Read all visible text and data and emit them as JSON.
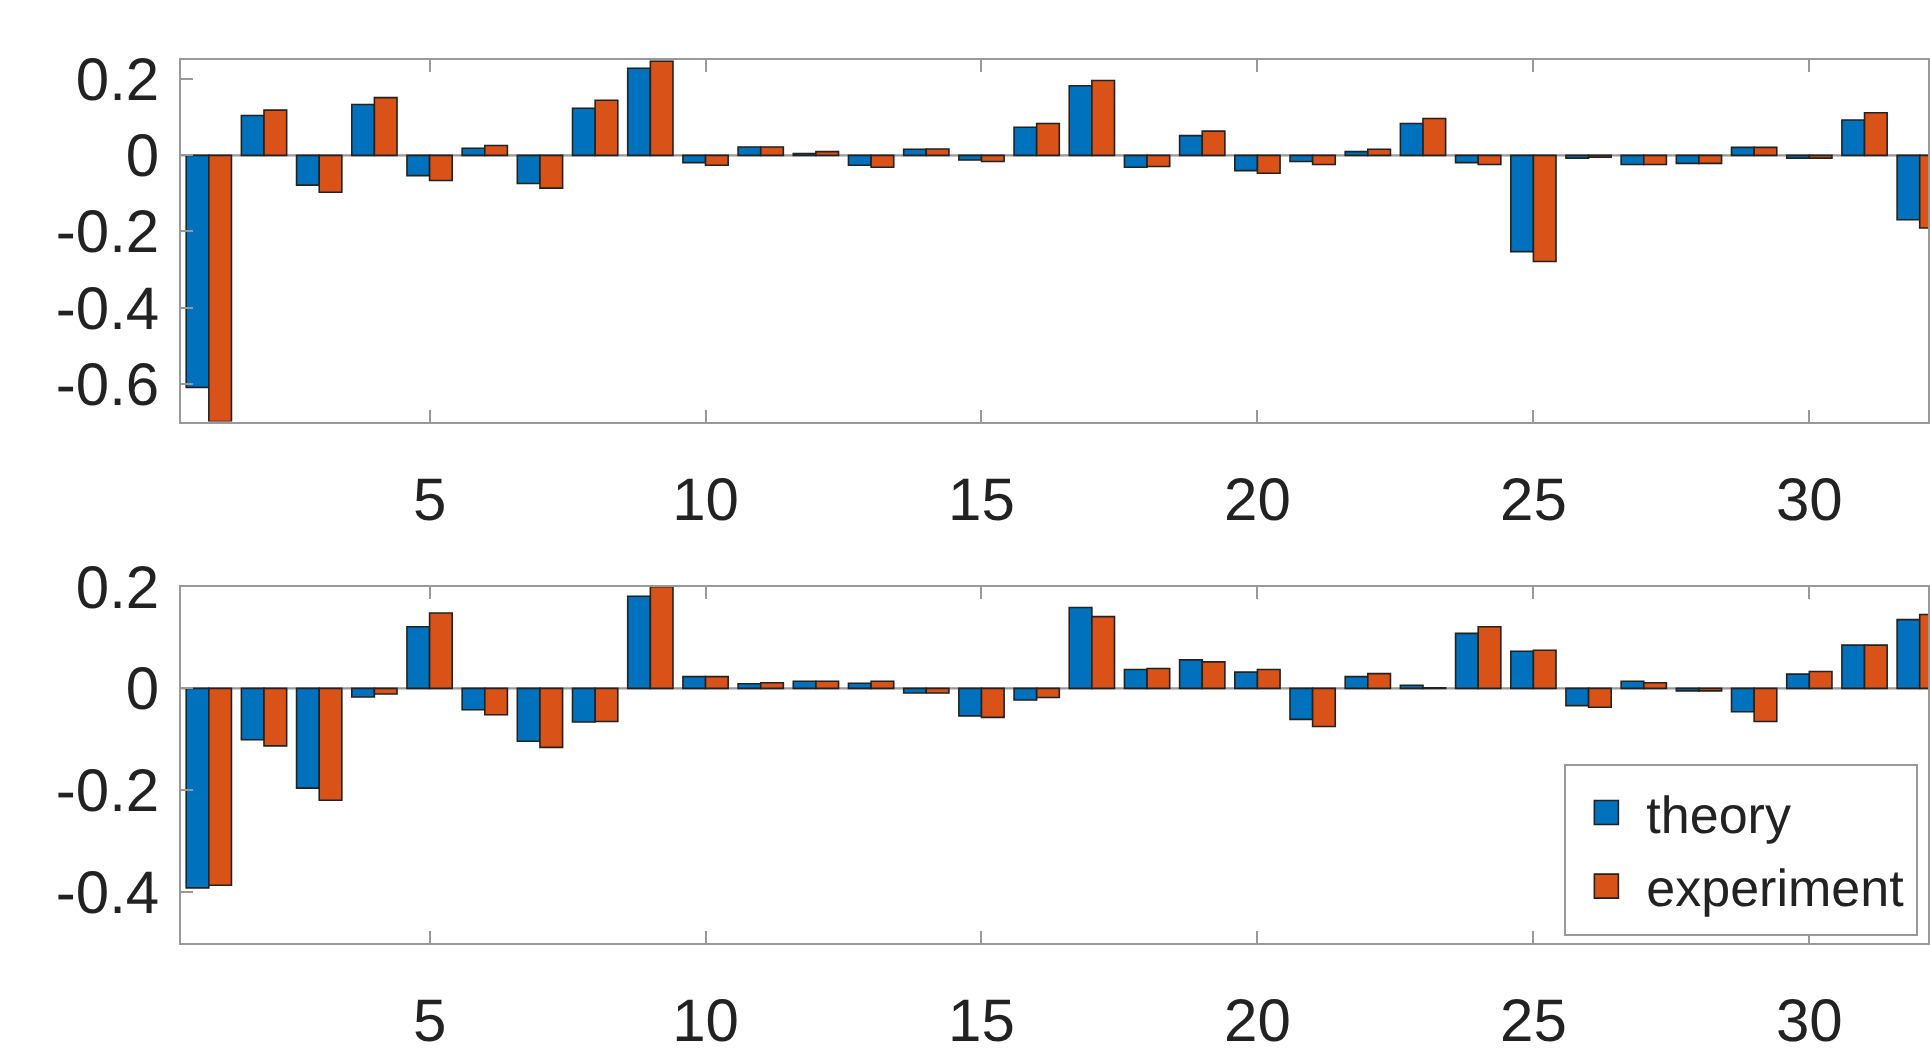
{
  "chart_data": [
    {
      "type": "bar",
      "x": [
        1,
        2,
        3,
        4,
        5,
        6,
        7,
        8,
        9,
        10,
        11,
        12,
        13,
        14,
        15,
        16,
        17,
        18,
        19,
        20,
        21,
        22,
        23,
        24,
        25,
        26,
        27,
        28,
        29,
        30,
        31,
        32
      ],
      "xlim": [
        0.5,
        32.15
      ],
      "xticks": [
        5,
        10,
        15,
        20,
        25,
        30
      ],
      "ylim": [
        -0.7,
        0.25
      ],
      "yticks": [
        -0.6,
        -0.4,
        -0.2,
        0,
        0.2
      ],
      "grid": false,
      "ref_lines": [
        {
          "axis": "y",
          "value": 0
        }
      ],
      "legend": false,
      "series": [
        {
          "color": "#0072bd",
          "values": [
            -0.61,
            0.105,
            -0.078,
            0.134,
            -0.053,
            0.019,
            -0.074,
            0.124,
            0.229,
            -0.019,
            0.022,
            0.005,
            -0.026,
            0.016,
            -0.012,
            0.074,
            0.183,
            -0.031,
            0.052,
            -0.04,
            -0.016,
            0.01,
            0.084,
            -0.019,
            -0.253,
            -0.007,
            -0.024,
            -0.021,
            0.021,
            -0.007,
            0.093,
            -0.169
          ]
        },
        {
          "color": "#d95319",
          "values": [
            -0.7,
            0.119,
            -0.097,
            0.152,
            -0.066,
            0.026,
            -0.086,
            0.145,
            0.248,
            -0.026,
            0.022,
            0.01,
            -0.031,
            0.017,
            -0.016,
            0.084,
            0.197,
            -0.029,
            0.064,
            -0.047,
            -0.024,
            0.016,
            0.097,
            -0.024,
            -0.279,
            -0.005,
            -0.024,
            -0.021,
            0.021,
            -0.007,
            0.112,
            -0.191
          ]
        }
      ]
    },
    {
      "type": "bar",
      "x": [
        1,
        2,
        3,
        4,
        5,
        6,
        7,
        8,
        9,
        10,
        11,
        12,
        13,
        14,
        15,
        16,
        17,
        18,
        19,
        20,
        21,
        22,
        23,
        24,
        25,
        26,
        27,
        28,
        29,
        30,
        31,
        32
      ],
      "xlim": [
        0.5,
        32.15
      ],
      "xticks": [
        5,
        10,
        15,
        20,
        25,
        30
      ],
      "ylim": [
        -0.5,
        0.2
      ],
      "yticks": [
        -0.4,
        -0.2,
        0,
        0.2
      ],
      "grid": false,
      "ref_lines": [
        {
          "axis": "y",
          "value": 0
        }
      ],
      "legend": "bottom right",
      "series": [
        {
          "name": "theory",
          "color": "#0072bd",
          "values": [
            -0.392,
            -0.101,
            -0.196,
            -0.017,
            0.121,
            -0.042,
            -0.104,
            -0.066,
            0.181,
            0.023,
            0.009,
            0.014,
            0.01,
            -0.009,
            -0.054,
            -0.023,
            0.159,
            0.037,
            0.056,
            0.032,
            -0.061,
            0.023,
            0.006,
            0.108,
            0.073,
            -0.034,
            0.014,
            -0.005,
            -0.046,
            0.028,
            0.085,
            0.135
          ]
        },
        {
          "name": "experiment",
          "color": "#d95319",
          "values": [
            -0.387,
            -0.113,
            -0.22,
            -0.011,
            0.148,
            -0.052,
            -0.116,
            -0.065,
            0.2,
            0.023,
            0.011,
            0.014,
            0.014,
            -0.009,
            -0.057,
            -0.018,
            0.141,
            0.039,
            0.052,
            0.037,
            -0.075,
            0.029,
            0.001,
            0.121,
            0.075,
            -0.037,
            0.011,
            -0.005,
            -0.065,
            0.033,
            0.085,
            0.145
          ]
        }
      ]
    }
  ]
}
